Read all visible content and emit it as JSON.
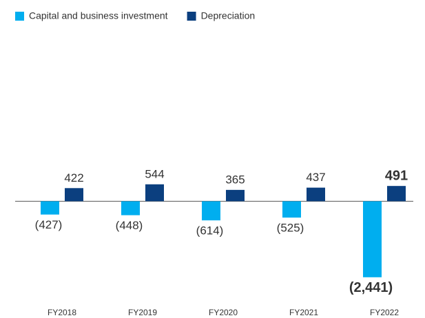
{
  "chart_data": {
    "type": "bar",
    "categories": [
      "FY2018",
      "FY2019",
      "FY2020",
      "FY2021",
      "FY2022"
    ],
    "series": [
      {
        "name": "Capital and business investment",
        "color": "#00aeef",
        "values": [
          -427,
          -448,
          -614,
          -525,
          -2441
        ],
        "value_labels": [
          "(427)",
          "(448)",
          "(614)",
          "(525)",
          "(2,441)"
        ]
      },
      {
        "name": "Depreciation",
        "color": "#0b3f7f",
        "values": [
          422,
          544,
          365,
          437,
          491
        ]
      }
    ],
    "ylim": [
      -2600,
      5800
    ],
    "legend": "top-left"
  }
}
